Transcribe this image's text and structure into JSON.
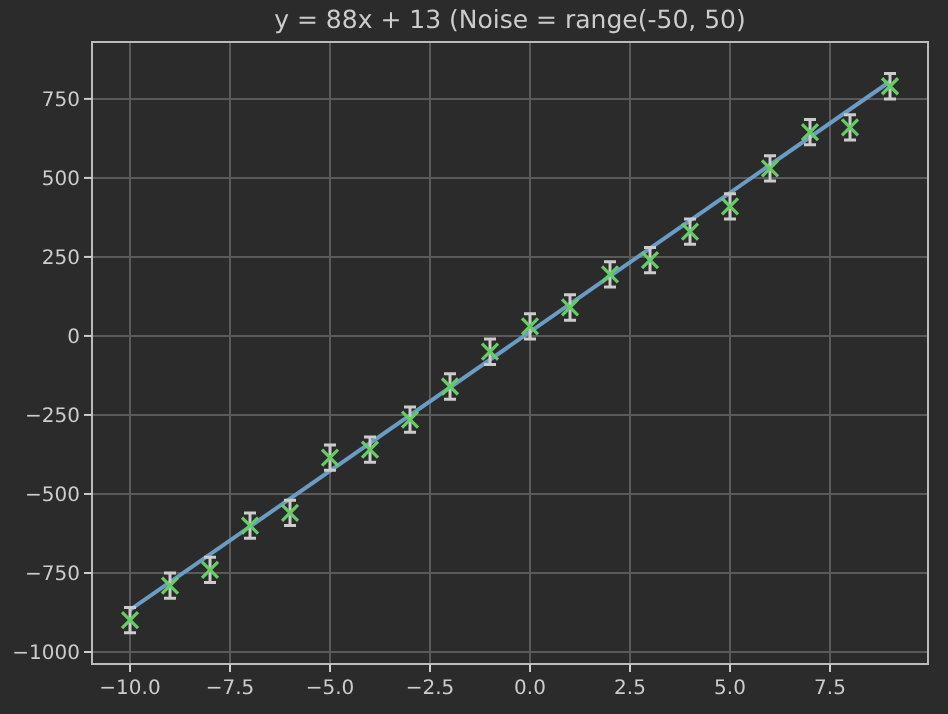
{
  "chart_data": {
    "type": "scatter",
    "title": "y = 88x + 13 (Noise = range(-50, 50)",
    "xlim": [
      -10.95,
      9.95
    ],
    "ylim": [
      -1038,
      930
    ],
    "xticks": [
      {
        "value": -10,
        "label": "−10.0"
      },
      {
        "value": -7.5,
        "label": "−7.5"
      },
      {
        "value": -5,
        "label": "−5.0"
      },
      {
        "value": -2.5,
        "label": "−2.5"
      },
      {
        "value": 0,
        "label": "0.0"
      },
      {
        "value": 2.5,
        "label": "2.5"
      },
      {
        "value": 5,
        "label": "5.0"
      },
      {
        "value": 7.5,
        "label": "7.5"
      }
    ],
    "yticks": [
      {
        "value": -1000,
        "label": "−1000"
      },
      {
        "value": -750,
        "label": "−750"
      },
      {
        "value": -500,
        "label": "−500"
      },
      {
        "value": -250,
        "label": "−250"
      },
      0,
      250,
      500,
      750
    ],
    "grid": true,
    "series": [
      {
        "type": "line",
        "color": "#6a9cc4",
        "x": [
          -10,
          9
        ],
        "values": [
          -867,
          805
        ],
        "marker": "none",
        "line_style": "solid"
      },
      {
        "color": "#66cc66",
        "marker": "cross",
        "x": [
          -10,
          -9,
          -8,
          -7,
          -6,
          -5,
          -4,
          -3,
          -2,
          -1,
          0,
          1,
          2,
          3,
          4,
          5,
          6,
          7,
          8,
          9
        ],
        "values": [
          -899,
          -790,
          -740,
          -600,
          -560,
          -385,
          -360,
          -265,
          -160,
          -50,
          30,
          90,
          195,
          240,
          330,
          410,
          530,
          645,
          660,
          790
        ],
        "errors": [
          40,
          40,
          40,
          40,
          40,
          40,
          40,
          40,
          40,
          40,
          40,
          40,
          40,
          40,
          40,
          40,
          40,
          40,
          40,
          40
        ]
      }
    ]
  }
}
